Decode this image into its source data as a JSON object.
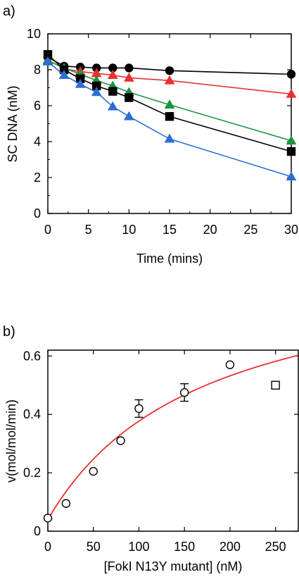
{
  "chart_data": [
    {
      "type": "line",
      "panel_label": "a)",
      "xlabel": "Time (mins)",
      "ylabel": "SC DNA (nM)",
      "xlim": [
        0,
        30
      ],
      "ylim": [
        0,
        10
      ],
      "xticks": [
        0,
        5,
        10,
        15,
        20,
        25,
        30
      ],
      "yticks": [
        0,
        2,
        4,
        6,
        8,
        10
      ],
      "grid": false,
      "series": [
        {
          "color": "#000000",
          "marker": "circle",
          "x": [
            0,
            2,
            4,
            6,
            8,
            10,
            15,
            30
          ],
          "y": [
            8.7,
            8.2,
            8.15,
            8.1,
            8.1,
            8.1,
            7.95,
            7.75
          ]
        },
        {
          "color": "#e8302f",
          "marker": "triangle",
          "x": [
            0,
            2,
            4,
            6,
            8,
            10,
            15,
            30
          ],
          "y": [
            8.55,
            8.05,
            7.9,
            7.8,
            7.7,
            7.55,
            7.4,
            6.65
          ]
        },
        {
          "color": "#1a9641",
          "marker": "triangle",
          "x": [
            0,
            2,
            4,
            6,
            8,
            10,
            15,
            30
          ],
          "y": [
            8.5,
            8.1,
            7.75,
            7.4,
            7.1,
            6.75,
            6.05,
            4.05
          ]
        },
        {
          "color": "#000000",
          "marker": "square",
          "x": [
            0,
            2,
            4,
            6,
            8,
            10,
            15,
            30
          ],
          "y": [
            8.85,
            8.0,
            7.5,
            7.1,
            6.8,
            6.45,
            5.4,
            3.45
          ]
        },
        {
          "color": "#2b6fd6",
          "marker": "triangle",
          "x": [
            0,
            2,
            4,
            6,
            8,
            10,
            15,
            30
          ],
          "y": [
            8.45,
            7.7,
            7.2,
            6.75,
            5.95,
            5.4,
            4.15,
            2.05
          ]
        }
      ]
    },
    {
      "type": "scatter",
      "panel_label": "b)",
      "xlabel": "[FokI N13Y mutant] (nM)",
      "ylabel": "v(mol/mol/min)",
      "xlim": [
        0,
        275
      ],
      "ylim": [
        0,
        0.62
      ],
      "xticks": [
        0,
        50,
        100,
        150,
        200,
        250
      ],
      "yticks": [
        0,
        0.2,
        0.4,
        0.6
      ],
      "ytick_labels": [
        "0",
        "0.2",
        "0.4",
        "0.6"
      ],
      "grid": false,
      "points": [
        {
          "x": 0,
          "y": 0.045,
          "marker": "circle"
        },
        {
          "x": 20,
          "y": 0.095,
          "marker": "circle"
        },
        {
          "x": 50,
          "y": 0.205,
          "marker": "circle"
        },
        {
          "x": 80,
          "y": 0.31,
          "marker": "circle"
        },
        {
          "x": 100,
          "y": 0.42,
          "marker": "circle",
          "err": 0.03
        },
        {
          "x": 150,
          "y": 0.475,
          "marker": "circle",
          "err": 0.03
        },
        {
          "x": 200,
          "y": 0.57,
          "marker": "circle"
        },
        {
          "x": 250,
          "y": 0.5,
          "marker": "square"
        }
      ],
      "fit": {
        "color": "#e8302f",
        "vmax": 0.95,
        "km": 170,
        "y0": 0.04
      }
    }
  ]
}
